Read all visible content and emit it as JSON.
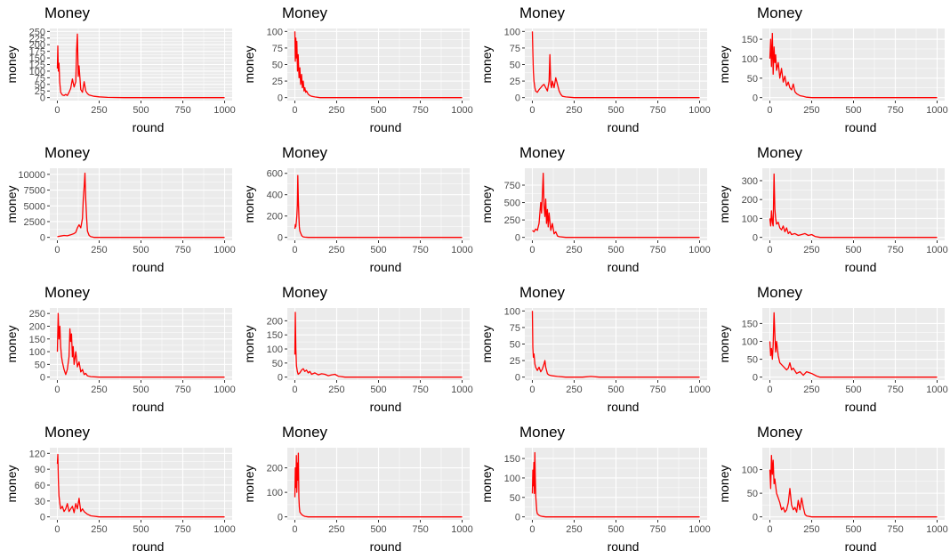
{
  "figure": {
    "layout": "4x4 grid of line plots"
  },
  "colors": {
    "line": "#ff0000",
    "panel_background": "#ebebeb",
    "grid_major": "#ffffff",
    "tick_text": "#4d4d4d"
  },
  "chart_data": [
    {
      "type": "line",
      "title": "Money",
      "xlabel": "round",
      "ylabel": "money",
      "xlim": [
        0,
        1000
      ],
      "ylim": [
        0,
        250
      ],
      "xticks": [
        0,
        250,
        500,
        750,
        1000
      ],
      "yticks": [
        0,
        25,
        50,
        75,
        100,
        125,
        150,
        175,
        200,
        225,
        250
      ],
      "grid": true,
      "x": [
        0,
        3,
        6,
        10,
        14,
        20,
        30,
        40,
        50,
        60,
        70,
        80,
        90,
        100,
        110,
        115,
        120,
        125,
        130,
        140,
        150,
        160,
        170,
        180,
        190,
        200,
        220,
        250,
        300,
        400,
        600,
        1000
      ],
      "y": [
        110,
        195,
        100,
        130,
        60,
        20,
        10,
        8,
        12,
        8,
        20,
        35,
        70,
        40,
        60,
        180,
        240,
        80,
        120,
        30,
        20,
        60,
        25,
        15,
        10,
        8,
        5,
        3,
        1,
        0,
        0,
        0
      ]
    },
    {
      "type": "line",
      "title": "Money",
      "xlabel": "round",
      "ylabel": "money",
      "xlim": [
        0,
        1000
      ],
      "ylim": [
        0,
        100
      ],
      "xticks": [
        0,
        250,
        500,
        750,
        1000
      ],
      "yticks": [
        0,
        25,
        50,
        75,
        100
      ],
      "grid": true,
      "x": [
        0,
        3,
        6,
        8,
        12,
        16,
        20,
        25,
        30,
        35,
        40,
        45,
        50,
        55,
        60,
        65,
        70,
        80,
        90,
        100,
        120,
        150,
        200,
        1000
      ],
      "y": [
        100,
        55,
        90,
        60,
        85,
        40,
        65,
        30,
        45,
        20,
        35,
        15,
        25,
        10,
        15,
        8,
        10,
        5,
        3,
        2,
        1,
        0,
        0,
        0
      ]
    },
    {
      "type": "line",
      "title": "Money",
      "xlabel": "round",
      "ylabel": "money",
      "xlim": [
        0,
        1000
      ],
      "ylim": [
        0,
        100
      ],
      "xticks": [
        0,
        250,
        500,
        750,
        1000
      ],
      "yticks": [
        0,
        25,
        50,
        75,
        100
      ],
      "grid": true,
      "x": [
        0,
        3,
        6,
        10,
        15,
        20,
        30,
        40,
        50,
        60,
        70,
        80,
        90,
        100,
        105,
        110,
        115,
        120,
        130,
        140,
        150,
        160,
        170,
        180,
        200,
        250,
        1000
      ],
      "y": [
        100,
        70,
        40,
        25,
        15,
        10,
        8,
        12,
        15,
        18,
        20,
        15,
        10,
        25,
        65,
        20,
        15,
        25,
        15,
        30,
        20,
        10,
        5,
        2,
        1,
        0,
        0
      ]
    },
    {
      "type": "line",
      "title": "Money",
      "xlabel": "round",
      "ylabel": "money",
      "xlim": [
        0,
        1000
      ],
      "ylim": [
        0,
        170
      ],
      "xticks": [
        0,
        250,
        500,
        750,
        1000
      ],
      "yticks": [
        0,
        50,
        100,
        150
      ],
      "grid": true,
      "x": [
        0,
        5,
        10,
        15,
        20,
        25,
        30,
        35,
        40,
        50,
        60,
        70,
        80,
        90,
        100,
        110,
        120,
        130,
        140,
        150,
        160,
        180,
        200,
        220,
        250,
        1000
      ],
      "y": [
        100,
        150,
        80,
        165,
        60,
        130,
        90,
        110,
        70,
        90,
        50,
        75,
        40,
        55,
        30,
        40,
        25,
        20,
        35,
        15,
        10,
        5,
        3,
        1,
        0,
        0
      ]
    },
    {
      "type": "line",
      "title": "Money",
      "xlabel": "round",
      "ylabel": "money",
      "xlim": [
        0,
        1000
      ],
      "ylim": [
        0,
        10500
      ],
      "xticks": [
        0,
        250,
        500,
        750,
        1000
      ],
      "yticks": [
        0,
        2500,
        5000,
        7500,
        10000
      ],
      "grid": true,
      "x": [
        0,
        20,
        40,
        60,
        80,
        100,
        110,
        120,
        130,
        140,
        150,
        155,
        160,
        165,
        170,
        175,
        180,
        190,
        200,
        210,
        220,
        300,
        1000
      ],
      "y": [
        100,
        200,
        300,
        250,
        400,
        600,
        800,
        1500,
        2000,
        1500,
        3000,
        6000,
        8000,
        10200,
        6000,
        3000,
        1000,
        300,
        100,
        50,
        0,
        0,
        0
      ]
    },
    {
      "type": "line",
      "title": "Money",
      "xlabel": "round",
      "ylabel": "money",
      "xlim": [
        0,
        1000
      ],
      "ylim": [
        0,
        620
      ],
      "xticks": [
        0,
        250,
        500,
        750,
        1000
      ],
      "yticks": [
        0,
        200,
        400,
        600
      ],
      "grid": true,
      "x": [
        0,
        3,
        6,
        9,
        12,
        15,
        18,
        21,
        24,
        27,
        30,
        35,
        40,
        45,
        50,
        60,
        80,
        100,
        1000
      ],
      "y": [
        80,
        120,
        100,
        150,
        200,
        300,
        580,
        350,
        200,
        100,
        60,
        40,
        20,
        10,
        5,
        2,
        0,
        0,
        0
      ]
    },
    {
      "type": "line",
      "title": "Money",
      "xlabel": "round",
      "ylabel": "money",
      "xlim": [
        0,
        1000
      ],
      "ylim": [
        0,
        950
      ],
      "xticks": [
        0,
        250,
        500,
        750,
        1000
      ],
      "yticks": [
        0,
        250,
        500,
        750
      ],
      "grid": true,
      "x": [
        0,
        10,
        20,
        30,
        40,
        50,
        55,
        60,
        65,
        70,
        75,
        80,
        85,
        90,
        95,
        100,
        110,
        120,
        130,
        140,
        150,
        160,
        200,
        1000
      ],
      "y": [
        100,
        80,
        120,
        100,
        200,
        500,
        350,
        600,
        920,
        450,
        300,
        550,
        200,
        400,
        150,
        350,
        100,
        200,
        50,
        80,
        20,
        10,
        0,
        0
      ]
    },
    {
      "type": "line",
      "title": "Money",
      "xlabel": "round",
      "ylabel": "money",
      "xlim": [
        0,
        1000
      ],
      "ylim": [
        0,
        350
      ],
      "xticks": [
        0,
        250,
        500,
        750,
        1000
      ],
      "yticks": [
        0,
        100,
        200,
        300
      ],
      "grid": true,
      "x": [
        0,
        5,
        10,
        15,
        20,
        25,
        30,
        35,
        40,
        50,
        60,
        70,
        80,
        90,
        100,
        110,
        120,
        130,
        150,
        170,
        190,
        210,
        230,
        250,
        270,
        300,
        1000
      ],
      "y": [
        100,
        60,
        140,
        80,
        60,
        335,
        150,
        100,
        70,
        80,
        50,
        40,
        60,
        30,
        50,
        20,
        30,
        15,
        20,
        10,
        15,
        20,
        10,
        15,
        5,
        0,
        0
      ]
    },
    {
      "type": "line",
      "title": "Money",
      "xlabel": "round",
      "ylabel": "money",
      "xlim": [
        0,
        1000
      ],
      "ylim": [
        0,
        260
      ],
      "xticks": [
        0,
        250,
        500,
        750,
        1000
      ],
      "yticks": [
        0,
        50,
        100,
        150,
        200,
        250
      ],
      "grid": true,
      "x": [
        0,
        5,
        10,
        15,
        20,
        25,
        30,
        40,
        50,
        60,
        70,
        75,
        80,
        85,
        90,
        95,
        100,
        110,
        120,
        130,
        140,
        150,
        160,
        170,
        180,
        200,
        250,
        1000
      ],
      "y": [
        100,
        250,
        150,
        200,
        120,
        80,
        60,
        30,
        10,
        30,
        80,
        190,
        140,
        170,
        80,
        120,
        50,
        100,
        40,
        60,
        20,
        30,
        10,
        15,
        5,
        2,
        0,
        0
      ]
    },
    {
      "type": "line",
      "title": "Money",
      "xlabel": "round",
      "ylabel": "money",
      "xlim": [
        0,
        1000
      ],
      "ylim": [
        0,
        235
      ],
      "xticks": [
        0,
        250,
        500,
        750,
        1000
      ],
      "yticks": [
        0,
        50,
        100,
        150,
        200
      ],
      "grid": true,
      "x": [
        0,
        3,
        6,
        10,
        15,
        20,
        30,
        40,
        50,
        60,
        70,
        80,
        90,
        100,
        120,
        140,
        160,
        180,
        200,
        220,
        240,
        260,
        300,
        1000
      ],
      "y": [
        80,
        230,
        100,
        40,
        20,
        10,
        15,
        25,
        30,
        20,
        25,
        15,
        20,
        10,
        15,
        8,
        12,
        10,
        5,
        8,
        10,
        3,
        0,
        0
      ]
    },
    {
      "type": "line",
      "title": "Money",
      "xlabel": "round",
      "ylabel": "money",
      "xlim": [
        0,
        1000
      ],
      "ylim": [
        0,
        100
      ],
      "xticks": [
        0,
        250,
        500,
        750,
        1000
      ],
      "yticks": [
        0,
        25,
        50,
        75,
        100
      ],
      "grid": true,
      "x": [
        0,
        3,
        6,
        10,
        15,
        20,
        30,
        40,
        50,
        60,
        70,
        75,
        80,
        90,
        100,
        120,
        150,
        200,
        300,
        350,
        400,
        1000
      ],
      "y": [
        100,
        45,
        30,
        35,
        20,
        15,
        10,
        15,
        8,
        12,
        20,
        25,
        15,
        5,
        3,
        2,
        1,
        0,
        0,
        1,
        0,
        0
      ]
    },
    {
      "type": "line",
      "title": "Money",
      "xlabel": "round",
      "ylabel": "money",
      "xlim": [
        0,
        1000
      ],
      "ylim": [
        0,
        185
      ],
      "xticks": [
        0,
        250,
        500,
        750,
        1000
      ],
      "yticks": [
        0,
        50,
        100,
        150
      ],
      "grid": true,
      "x": [
        0,
        5,
        10,
        15,
        20,
        25,
        30,
        35,
        40,
        50,
        60,
        80,
        100,
        110,
        120,
        130,
        140,
        160,
        180,
        200,
        220,
        250,
        280,
        300,
        1000
      ],
      "y": [
        100,
        60,
        80,
        50,
        90,
        180,
        120,
        70,
        100,
        60,
        40,
        30,
        20,
        25,
        40,
        20,
        25,
        10,
        15,
        5,
        15,
        10,
        3,
        0,
        0
      ]
    },
    {
      "type": "line",
      "title": "Money",
      "xlabel": "round",
      "ylabel": "money",
      "xlim": [
        0,
        1000
      ],
      "ylim": [
        0,
        125
      ],
      "xticks": [
        0,
        250,
        500,
        750,
        1000
      ],
      "yticks": [
        0,
        30,
        60,
        90,
        120
      ],
      "grid": true,
      "x": [
        0,
        3,
        6,
        10,
        15,
        20,
        30,
        40,
        50,
        60,
        70,
        80,
        90,
        100,
        110,
        120,
        130,
        140,
        150,
        160,
        180,
        200,
        250,
        1000
      ],
      "y": [
        100,
        118,
        70,
        40,
        25,
        15,
        20,
        10,
        15,
        25,
        10,
        15,
        20,
        8,
        25,
        15,
        35,
        10,
        15,
        10,
        5,
        2,
        0,
        0
      ]
    },
    {
      "type": "line",
      "title": "Money",
      "xlabel": "round",
      "ylabel": "money",
      "xlim": [
        0,
        1000
      ],
      "ylim": [
        0,
        270
      ],
      "xticks": [
        0,
        250,
        500,
        750,
        1000
      ],
      "yticks": [
        0,
        100,
        200
      ],
      "grid": true,
      "x": [
        0,
        3,
        6,
        9,
        12,
        15,
        18,
        21,
        24,
        27,
        30,
        40,
        50,
        60,
        80,
        100,
        1000
      ],
      "y": [
        80,
        200,
        120,
        250,
        100,
        220,
        150,
        260,
        80,
        40,
        20,
        10,
        5,
        2,
        0,
        0,
        0
      ]
    },
    {
      "type": "line",
      "title": "Money",
      "xlabel": "round",
      "ylabel": "money",
      "xlim": [
        0,
        1000
      ],
      "ylim": [
        0,
        170
      ],
      "xticks": [
        0,
        250,
        500,
        750,
        1000
      ],
      "yticks": [
        0,
        50,
        100,
        150
      ],
      "grid": true,
      "x": [
        0,
        3,
        6,
        9,
        12,
        15,
        18,
        21,
        24,
        27,
        30,
        40,
        50,
        60,
        80,
        100,
        1000
      ],
      "y": [
        60,
        120,
        80,
        140,
        60,
        165,
        100,
        50,
        30,
        15,
        8,
        4,
        2,
        1,
        0,
        0,
        0
      ]
    },
    {
      "type": "line",
      "title": "Money",
      "xlabel": "round",
      "ylabel": "money",
      "xlim": [
        0,
        1000
      ],
      "ylim": [
        0,
        140
      ],
      "xticks": [
        0,
        250,
        500,
        750,
        1000
      ],
      "yticks": [
        0,
        50,
        100
      ],
      "grid": true,
      "x": [
        0,
        5,
        10,
        15,
        20,
        25,
        30,
        40,
        50,
        60,
        70,
        80,
        90,
        100,
        110,
        120,
        130,
        140,
        150,
        160,
        170,
        180,
        190,
        200,
        210,
        220,
        250,
        1000
      ],
      "y": [
        100,
        60,
        130,
        90,
        120,
        70,
        80,
        50,
        40,
        30,
        15,
        20,
        10,
        15,
        30,
        60,
        25,
        15,
        20,
        10,
        35,
        15,
        40,
        20,
        5,
        2,
        0,
        0
      ]
    }
  ]
}
